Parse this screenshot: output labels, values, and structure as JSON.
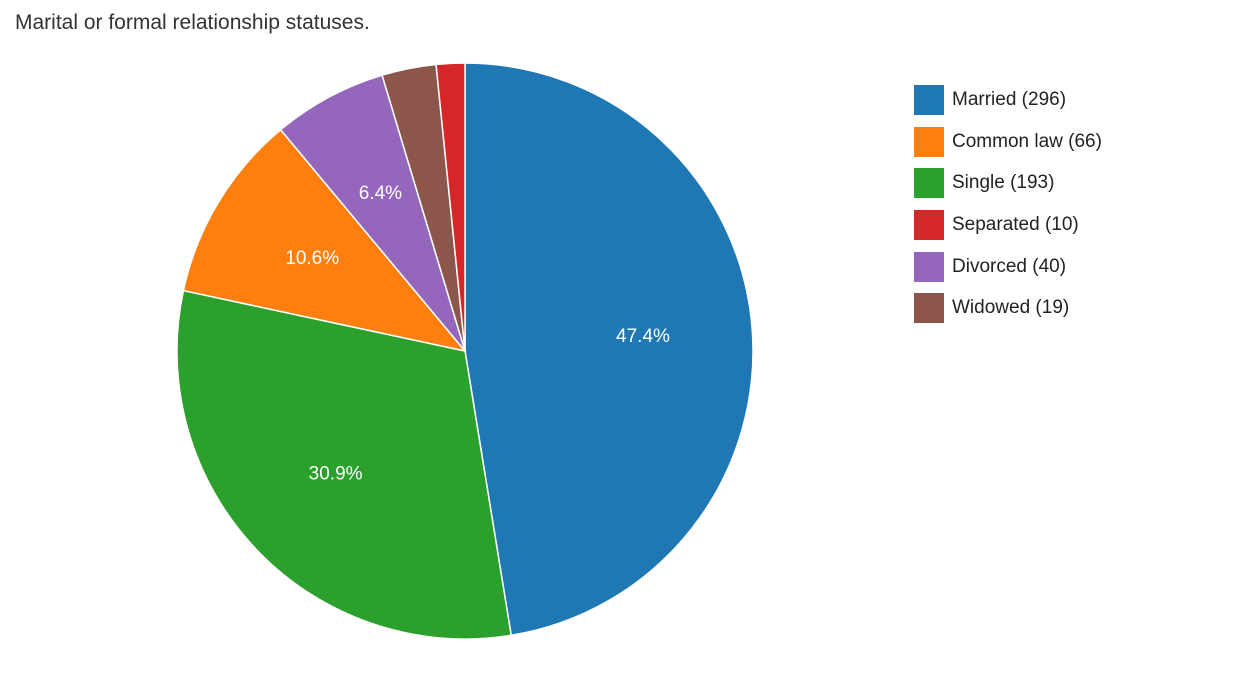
{
  "chart_data": {
    "type": "pie",
    "title": "Marital or formal relationship statuses.",
    "legend_position": "right",
    "slices": [
      {
        "name": "Married",
        "value": 296,
        "legend_label": "Married (296)",
        "percent_label": "47.4%",
        "color": "#1f77b4"
      },
      {
        "name": "Common law",
        "value": 66,
        "legend_label": "Common law (66)",
        "percent_label": "10.6%",
        "color": "#ff7f0e"
      },
      {
        "name": "Single",
        "value": 193,
        "legend_label": "Single (193)",
        "percent_label": "30.9%",
        "color": "#2ca02c"
      },
      {
        "name": "Separated",
        "value": 10,
        "legend_label": "Separated (10)",
        "percent_label": "",
        "color": "#d62728"
      },
      {
        "name": "Divorced",
        "value": 40,
        "legend_label": "Divorced (40)",
        "percent_label": "6.4%",
        "color": "#9467bd"
      },
      {
        "name": "Widowed",
        "value": 19,
        "legend_label": "Widowed (19)",
        "percent_label": "",
        "color": "#8c564b"
      }
    ],
    "pie_order": [
      "Married",
      "Single",
      "Common law",
      "Divorced",
      "Widowed",
      "Separated"
    ]
  }
}
